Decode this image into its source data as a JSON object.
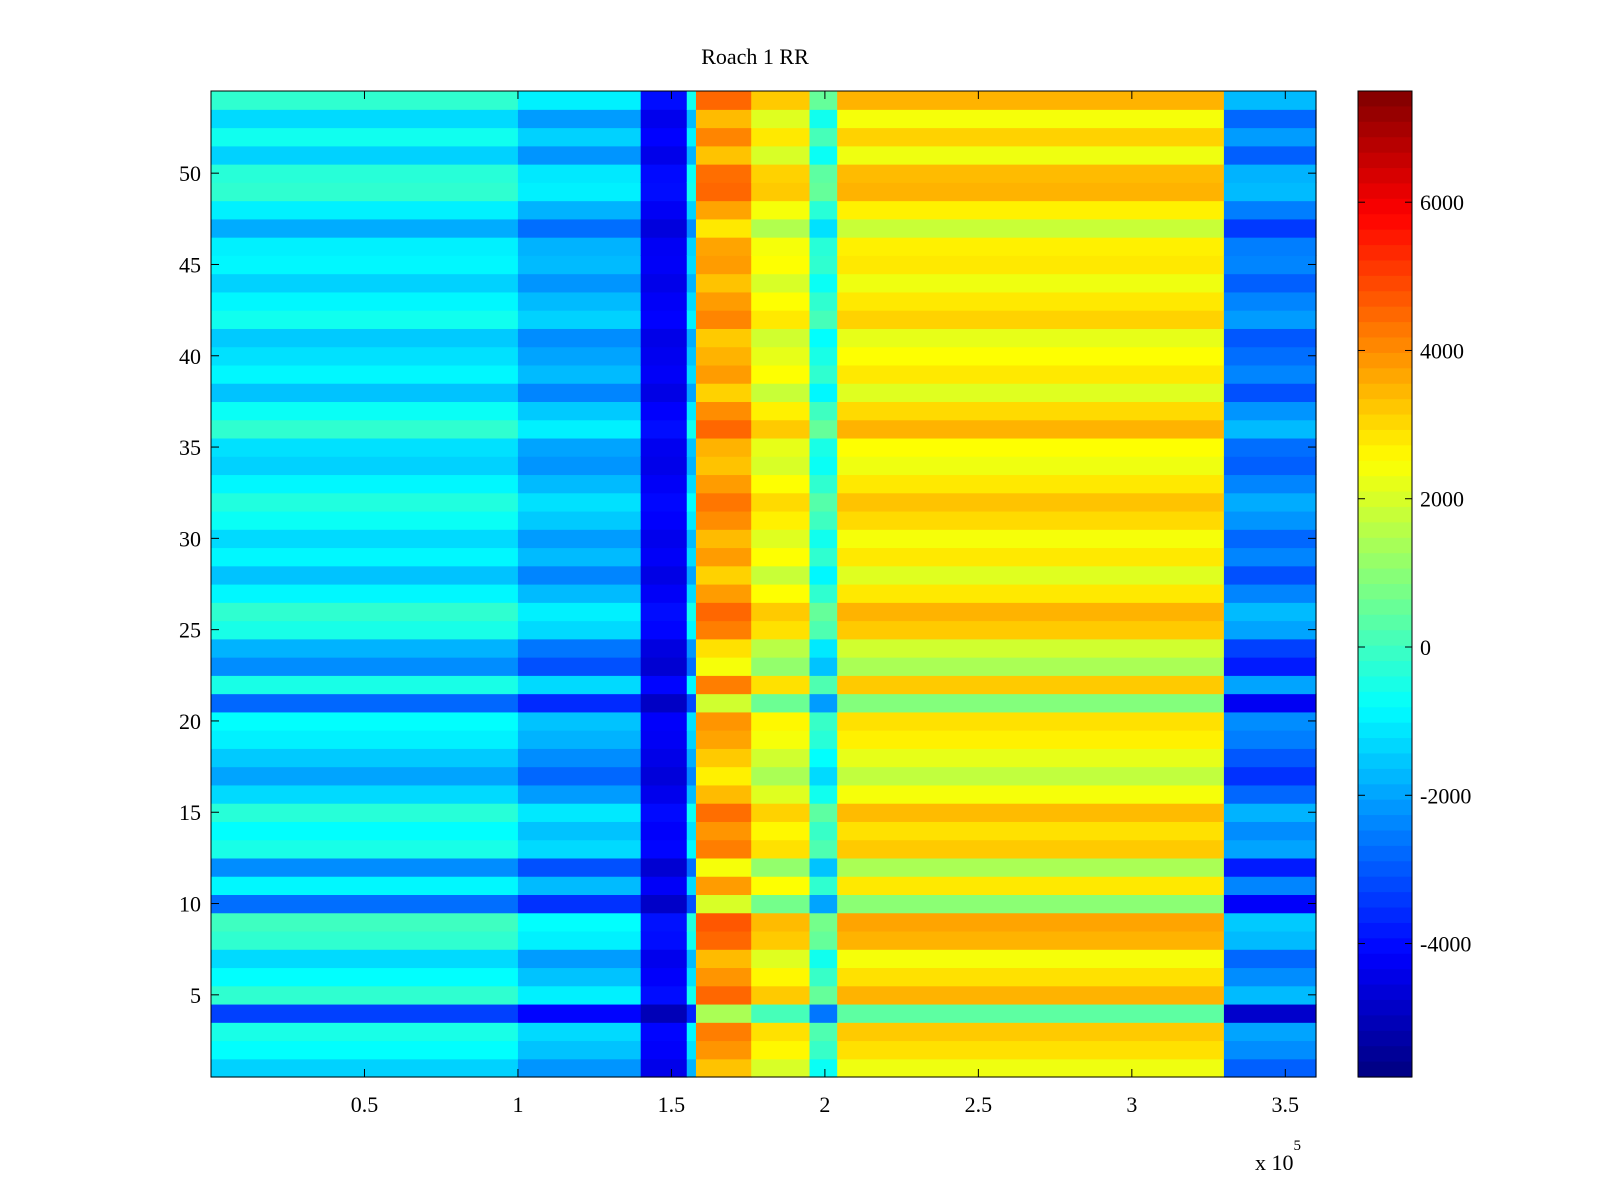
{
  "chart_data": {
    "type": "heatmap",
    "title": "Roach 1 RR",
    "xlabel": "",
    "ylabel": "",
    "x_exponent_label": "x 10",
    "x_exponent_power": "5",
    "xlim": [
      0,
      3.6
    ],
    "ylim": [
      0.5,
      54.5
    ],
    "x_ticks": [
      0.5,
      1,
      1.5,
      2,
      2.5,
      3,
      3.5
    ],
    "x_tick_labels": [
      "0.5",
      "1",
      "1.5",
      "2",
      "2.5",
      "3",
      "3.5"
    ],
    "y_ticks": [
      5,
      10,
      15,
      20,
      25,
      30,
      35,
      40,
      45,
      50
    ],
    "y_tick_labels": [
      "5",
      "10",
      "15",
      "20",
      "25",
      "30",
      "35",
      "40",
      "45",
      "50"
    ],
    "colormap": "jet",
    "clim": [
      -5800,
      7500
    ],
    "colorbar_ticks": [
      6000,
      4000,
      2000,
      0,
      -2000,
      -4000
    ],
    "colorbar_tick_labels": [
      "6000",
      "4000",
      "2000",
      "0",
      "-2000",
      "-4000"
    ],
    "rows": 54,
    "column_segments": [
      {
        "x_start": 0.0,
        "x_end": 1.0,
        "base_value": -1100,
        "description_value": -1100
      },
      {
        "x_start": 1.0,
        "x_end": 1.4,
        "base_value": -1900
      },
      {
        "x_start": 1.4,
        "x_end": 1.55,
        "base_value": -4300
      },
      {
        "x_start": 1.55,
        "x_end": 1.58,
        "base_value": -1500
      },
      {
        "x_start": 1.58,
        "x_end": 1.76,
        "base_value": 3600
      },
      {
        "x_start": 1.76,
        "x_end": 1.95,
        "base_value": 2300
      },
      {
        "x_start": 1.95,
        "x_end": 2.04,
        "base_value": -400
      },
      {
        "x_start": 2.04,
        "x_end": 3.3,
        "base_value": 2600
      },
      {
        "x_start": 3.3,
        "x_end": 3.6,
        "base_value": -2600
      }
    ],
    "row_offsets": [
      -300,
      300,
      600,
      -2200,
      900,
      300,
      -200,
      900,
      1100,
      -1600,
      200,
      -1200,
      600,
      300,
      800,
      -200,
      -900,
      -400,
      100,
      300,
      -1700,
      600,
      -1200,
      -700,
      600,
      900,
      200,
      -500,
      200,
      -200,
      400,
      700,
      200,
      -300,
      -100,
      900,
      400,
      -500,
      200,
      -100,
      -400,
      500,
      200,
      -300,
      200,
      100,
      -800,
      100,
      900,
      800,
      -300,
      500,
      -200,
      900
    ]
  },
  "colors": {
    "axis": "#000000",
    "background": "#ffffff"
  }
}
